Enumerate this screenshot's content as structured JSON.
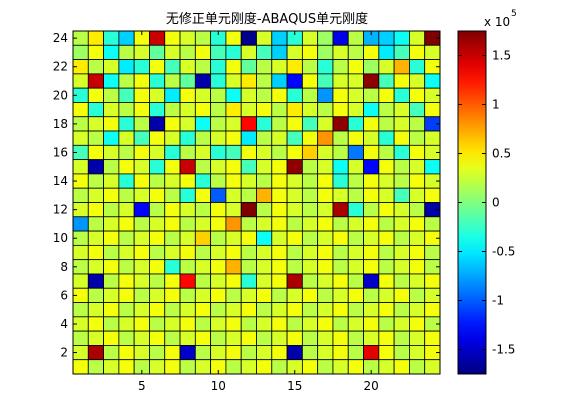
{
  "chart_data": {
    "type": "heatmap",
    "title": "无修正单元刚度-ABAQUS单元刚度",
    "xlabel": "",
    "ylabel": "",
    "x_range": [
      1,
      24
    ],
    "y_range": [
      1,
      24
    ],
    "x_ticks": [
      5,
      10,
      15,
      20
    ],
    "y_ticks": [
      2,
      4,
      6,
      8,
      10,
      12,
      14,
      16,
      18,
      20,
      22,
      24
    ],
    "colorbar": {
      "ticks": [
        1.5,
        1,
        0.5,
        0,
        -0.5,
        -1,
        -1.5
      ],
      "tick_labels": [
        "1.5",
        "1",
        "0.5",
        "0",
        "-0.5",
        "-1",
        "-1.5"
      ],
      "range": [
        -1.75,
        1.75
      ],
      "exponent_base": "x 10",
      "exponent_power": "5",
      "colormap": "jet",
      "placement": "right"
    },
    "grid": false,
    "rows_top_to_bottom": [
      [
        0.2,
        0.5,
        -0.3,
        -0.6,
        0.4,
        1.5,
        0.4,
        0.3,
        0.2,
        -0.3,
        0.4,
        -1.7,
        0.3,
        -0.6,
        -0.3,
        0.3,
        0.1,
        -1.4,
        0.2,
        -0.7,
        -0.6,
        -0.4,
        0.3,
        1.8
      ],
      [
        0.1,
        0.4,
        -0.4,
        0.2,
        0.3,
        -0.1,
        0.3,
        0.2,
        0.4,
        -0.2,
        -0.3,
        0.3,
        -0.2,
        -0.6,
        0.3,
        0.4,
        0.1,
        0.3,
        0.2,
        0.4,
        -0.5,
        -0.2,
        0.4,
        0.3
      ],
      [
        0.5,
        0.2,
        0.3,
        -0.5,
        -0.3,
        0.4,
        -0.2,
        0.3,
        0.2,
        -0.3,
        0.4,
        -0.1,
        0.2,
        0.3,
        0.5,
        0.2,
        -0.3,
        0.2,
        0.4,
        0.1,
        0.3,
        0.7,
        -0.3,
        0.4
      ],
      [
        0.3,
        1.5,
        -0.4,
        0.2,
        0.4,
        -0.3,
        0.2,
        -0.1,
        -1.6,
        -0.3,
        0.3,
        0.5,
        0.2,
        -0.6,
        -1.3,
        0.4,
        -0.2,
        0.3,
        0.3,
        1.7,
        -0.2,
        0.4,
        0.3,
        -0.4
      ],
      [
        -0.3,
        0.4,
        0.2,
        -0.2,
        0.4,
        0.3,
        -0.5,
        0.4,
        0.3,
        0.2,
        -0.4,
        0.3,
        0.2,
        0.4,
        -0.3,
        0.2,
        -0.8,
        0.4,
        0.3,
        0.2,
        0.4,
        -0.3,
        0.4,
        0.3
      ],
      [
        0.4,
        -0.3,
        0.3,
        0.2,
        0.4,
        -0.3,
        0.2,
        0.3,
        0.4,
        0.2,
        0.5,
        0.3,
        0.4,
        0.2,
        0.5,
        0.3,
        0.2,
        0.4,
        0.3,
        -0.4,
        0.2,
        0.3,
        -0.2,
        0.4
      ],
      [
        0.2,
        0.3,
        0.4,
        -0.3,
        0.2,
        -1.6,
        0.4,
        0.3,
        -0.4,
        0.2,
        0.3,
        1.3,
        -0.3,
        0.2,
        0.4,
        -0.2,
        0.3,
        1.7,
        -0.3,
        0.4,
        0.2,
        0.3,
        0.2,
        -1.1
      ],
      [
        0.3,
        0.2,
        -0.4,
        0.3,
        -0.2,
        0.4,
        0.3,
        -0.3,
        0.2,
        0.3,
        0.4,
        -0.5,
        0.2,
        0.3,
        -0.2,
        0.4,
        0.8,
        0.2,
        0.4,
        0.3,
        -0.3,
        0.4,
        0.2,
        0.3
      ],
      [
        -0.2,
        0.4,
        0.3,
        0.2,
        0.4,
        0.3,
        -0.3,
        0.2,
        0.3,
        -0.3,
        -0.2,
        0.4,
        0.3,
        0.2,
        0.4,
        0.6,
        0.3,
        0.2,
        -0.9,
        0.4,
        0.2,
        -0.3,
        0.4,
        0.3
      ],
      [
        0.3,
        -1.6,
        0.2,
        0.4,
        0.3,
        -0.3,
        0.4,
        1.5,
        0.2,
        0.3,
        0.4,
        -0.2,
        0.3,
        0.4,
        1.7,
        0.2,
        0.3,
        -0.4,
        0.3,
        -1.3,
        0.4,
        0.2,
        0.3,
        -0.4
      ],
      [
        0.4,
        0.2,
        0.3,
        -0.3,
        0.4,
        0.2,
        0.3,
        0.4,
        -0.3,
        0.2,
        0.4,
        0.3,
        0.2,
        0.4,
        0.3,
        0.2,
        0.4,
        -0.3,
        0.2,
        0.4,
        0.3,
        0.2,
        0.4,
        0.3
      ],
      [
        0.2,
        0.3,
        0.4,
        0.2,
        0.3,
        0.4,
        0.2,
        -0.3,
        0.4,
        -1.0,
        0.3,
        0.2,
        0.7,
        0.4,
        0.3,
        0.2,
        0.4,
        0.3,
        0.2,
        0.4,
        0.3,
        -0.2,
        0.3,
        0.4
      ],
      [
        0.3,
        0.4,
        0.2,
        0.3,
        -1.3,
        0.2,
        0.4,
        0.3,
        0.2,
        0.4,
        0.3,
        1.8,
        0.2,
        0.4,
        0.3,
        0.2,
        0.3,
        1.6,
        -0.3,
        0.2,
        0.4,
        0.3,
        0.2,
        -1.6
      ],
      [
        -0.8,
        0.2,
        0.3,
        0.4,
        0.2,
        0.3,
        0.4,
        0.2,
        0.3,
        0.4,
        0.8,
        0.2,
        0.3,
        0.4,
        0.2,
        0.3,
        0.4,
        0.2,
        0.3,
        0.4,
        0.2,
        0.3,
        0.4,
        0.2
      ],
      [
        0.2,
        0.3,
        0.4,
        0.2,
        0.3,
        0.4,
        0.2,
        0.3,
        0.6,
        0.2,
        0.3,
        0.4,
        -0.4,
        0.3,
        0.4,
        0.2,
        0.3,
        0.4,
        0.2,
        0.3,
        0.4,
        0.2,
        0.3,
        0.4
      ],
      [
        0.3,
        0.4,
        0.2,
        0.3,
        0.4,
        0.2,
        0.3,
        0.4,
        0.2,
        0.3,
        0.4,
        0.2,
        0.3,
        0.4,
        0.2,
        0.3,
        0.4,
        0.2,
        0.3,
        0.4,
        0.2,
        0.3,
        0.4,
        0.2
      ],
      [
        0.2,
        0.3,
        0.4,
        0.2,
        0.3,
        0.4,
        -0.3,
        0.2,
        0.3,
        0.4,
        0.7,
        0.2,
        0.3,
        0.4,
        0.2,
        0.3,
        0.4,
        0.2,
        0.3,
        0.4,
        0.2,
        0.3,
        0.4,
        0.2
      ],
      [
        0.3,
        -1.6,
        0.2,
        0.4,
        0.3,
        0.2,
        0.4,
        1.3,
        0.2,
        0.3,
        0.4,
        -0.3,
        0.3,
        0.4,
        1.6,
        0.2,
        0.3,
        0.4,
        0.2,
        -1.5,
        0.4,
        0.2,
        0.3,
        0.4
      ],
      [
        0.4,
        0.2,
        0.3,
        0.4,
        0.2,
        0.3,
        0.4,
        0.2,
        0.3,
        0.4,
        0.2,
        0.3,
        0.4,
        0.2,
        0.3,
        0.4,
        0.2,
        0.3,
        0.4,
        0.2,
        0.3,
        0.4,
        0.2,
        0.3
      ],
      [
        0.2,
        0.3,
        0.4,
        0.2,
        0.3,
        0.4,
        0.2,
        0.3,
        0.4,
        0.2,
        0.3,
        0.4,
        0.2,
        0.3,
        0.4,
        0.2,
        0.3,
        0.4,
        0.2,
        0.3,
        0.4,
        0.2,
        0.3,
        0.4
      ],
      [
        0.3,
        0.4,
        0.2,
        0.3,
        0.4,
        0.2,
        0.3,
        0.4,
        0.2,
        0.3,
        0.4,
        0.2,
        0.3,
        0.4,
        0.2,
        0.3,
        0.4,
        0.2,
        0.3,
        0.4,
        0.2,
        0.3,
        0.4,
        0.2
      ],
      [
        0.2,
        0.3,
        0.4,
        0.2,
        0.3,
        0.4,
        0.2,
        0.3,
        0.4,
        0.2,
        0.3,
        0.4,
        0.2,
        0.3,
        0.4,
        0.2,
        0.3,
        0.4,
        0.2,
        0.3,
        0.4,
        0.2,
        0.3,
        0.4
      ],
      [
        0.3,
        1.6,
        0.2,
        0.4,
        0.3,
        0.2,
        0.4,
        -1.5,
        0.2,
        0.3,
        0.4,
        0.2,
        0.3,
        0.4,
        -1.6,
        0.2,
        0.3,
        0.4,
        0.2,
        1.4,
        0.4,
        0.2,
        0.3,
        0.4
      ],
      [
        0.4,
        0.2,
        0.3,
        0.4,
        0.2,
        0.3,
        0.4,
        0.2,
        0.3,
        0.4,
        0.2,
        0.3,
        0.4,
        0.2,
        0.3,
        0.4,
        0.2,
        0.3,
        0.4,
        0.2,
        0.3,
        0.4,
        0.2,
        0.3
      ]
    ]
  }
}
